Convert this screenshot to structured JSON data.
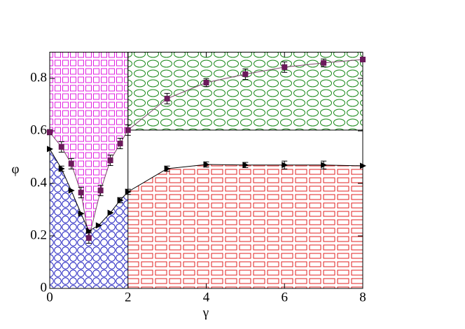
{
  "chart_data": {
    "type": "scatter",
    "x_label": "γ",
    "y_label": "φ",
    "xlim": [
      0,
      8
    ],
    "ylim": [
      0,
      0.9
    ],
    "xticks": [
      0,
      2,
      4,
      6,
      8
    ],
    "yticks": [
      0,
      0.2,
      0.4,
      0.6,
      0.8
    ],
    "series": [
      {
        "name": "squares",
        "color": "#6b1a5b",
        "marker": "square",
        "x": [
          0,
          0.3,
          0.55,
          0.8,
          1.0,
          1.3,
          1.55,
          1.8,
          2.0,
          3,
          4,
          5,
          6,
          7,
          8
        ],
        "values": [
          0.595,
          0.539,
          0.475,
          0.365,
          0.192,
          0.373,
          0.488,
          0.552,
          0.603,
          0.723,
          0.784,
          0.816,
          0.843,
          0.859,
          0.872
        ],
        "errors": [
          0.01,
          0.02,
          0.02,
          0.02,
          0.02,
          0.02,
          0.02,
          0.02,
          0.02,
          0.02,
          0.015,
          0.02,
          0.02,
          0.015,
          0
        ]
      },
      {
        "name": "triangles",
        "color": "#000000",
        "marker": "triangle",
        "x": [
          0,
          0.3,
          0.55,
          0.8,
          1.0,
          1.25,
          1.55,
          1.8,
          2.0,
          3,
          4,
          5,
          6,
          7,
          8
        ],
        "values": [
          0.531,
          0.456,
          0.373,
          0.285,
          0.219,
          0.24,
          0.288,
          0.336,
          0.368,
          0.456,
          0.472,
          0.47,
          0.47,
          0.47,
          0.467
        ],
        "errors": [
          0,
          0.01,
          0,
          0,
          0,
          0,
          0,
          0.01,
          0.01,
          0.01,
          0.01,
          0.01,
          0.015,
          0.015,
          0
        ]
      }
    ]
  }
}
